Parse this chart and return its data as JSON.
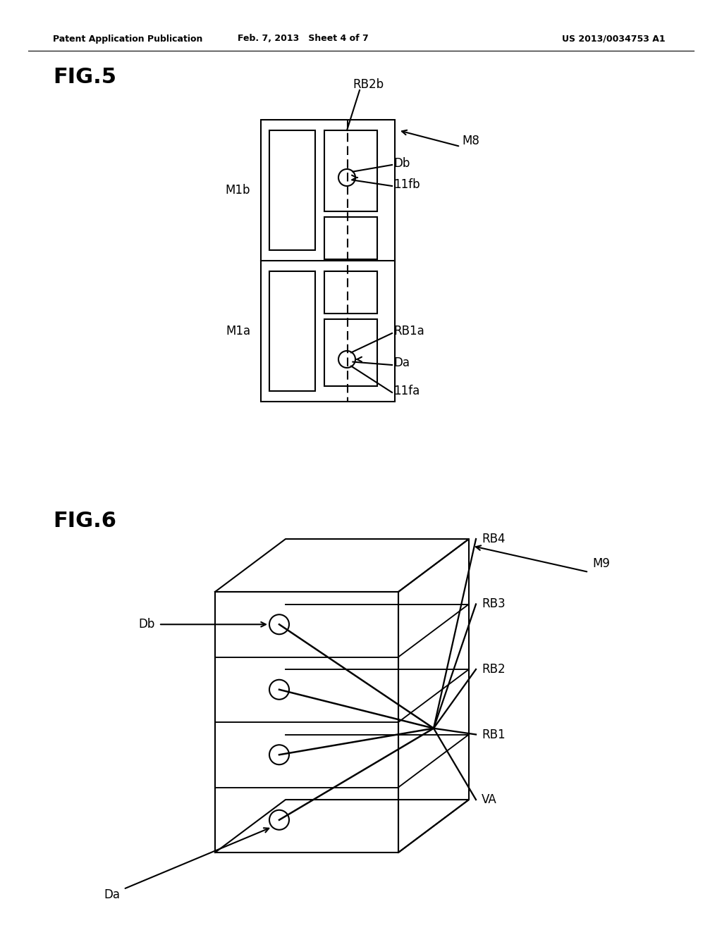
{
  "header_left": "Patent Application Publication",
  "header_mid": "Feb. 7, 2013   Sheet 4 of 7",
  "header_right": "US 2013/0034753 A1",
  "fig5_label": "FIG.5",
  "fig6_label": "FIG.6",
  "bg_color": "#ffffff",
  "line_color": "#000000"
}
